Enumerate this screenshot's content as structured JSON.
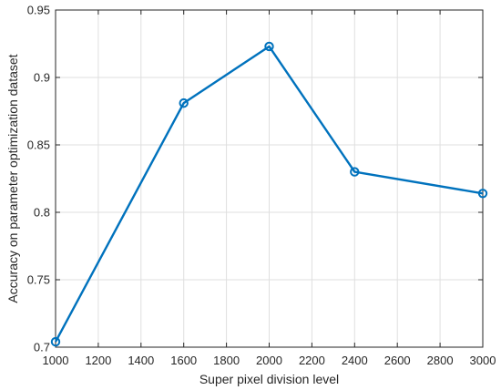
{
  "chart_data": {
    "type": "line",
    "title": "",
    "xlabel": "Super pixel division level",
    "ylabel": "Accuracy on parameter optimization dataset",
    "xlim": [
      1000,
      3000
    ],
    "ylim": [
      0.7,
      0.95
    ],
    "xticks": [
      1000,
      1200,
      1400,
      1600,
      1800,
      2000,
      2200,
      2400,
      2600,
      2800,
      3000
    ],
    "yticks": [
      0.7,
      0.75,
      0.8,
      0.85,
      0.9,
      0.95
    ],
    "xtick_labels": [
      "1000",
      "1200",
      "1400",
      "1600",
      "1800",
      "2000",
      "2200",
      "2400",
      "2600",
      "2800",
      "3000"
    ],
    "ytick_labels": [
      "0.7",
      "0.75",
      "0.8",
      "0.85",
      "0.9",
      "0.95"
    ],
    "grid": true,
    "series": [
      {
        "x": [
          1000,
          1600,
          2000,
          2400,
          3000
        ],
        "y": [
          0.704,
          0.881,
          0.923,
          0.83,
          0.814
        ],
        "color": "#0072BD",
        "marker": "circle"
      }
    ]
  }
}
